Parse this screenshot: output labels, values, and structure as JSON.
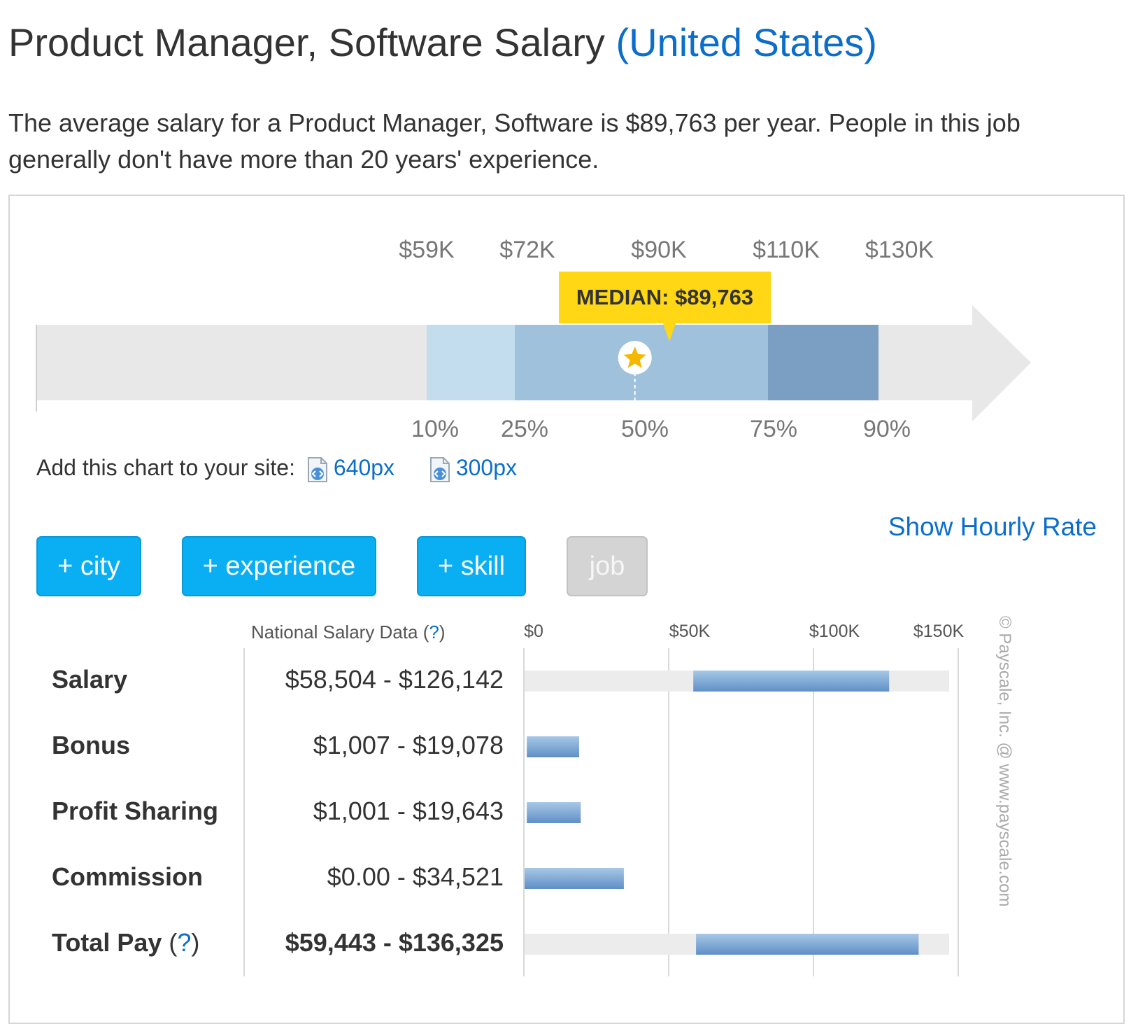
{
  "header": {
    "title": "Product Manager, Software Salary",
    "region": "(United States)",
    "summary": "The average salary for a Product Manager, Software is $89,763 per year. People in this job generally don't have more than 20 years' experience."
  },
  "chart_data": [
    {
      "type": "bar",
      "title": "",
      "percentiles": [
        "10%",
        "25%",
        "50%",
        "75%",
        "90%"
      ],
      "values_label": [
        "$59K",
        "$72K",
        "$90K",
        "$110K",
        "$130K"
      ],
      "values": [
        59000,
        72000,
        90000,
        110000,
        130000
      ],
      "median_label": "MEDIAN: $89,763",
      "median": 89763,
      "colors": {
        "track": "#e8e8e8",
        "p10_p25": "#c3ddee",
        "p25_p75": "#9fc1dc",
        "p75_p90": "#7a9fc3",
        "median_badge": "#ffd714"
      }
    },
    {
      "type": "bar",
      "title": "",
      "header": "National Salary Data",
      "help": "?",
      "axis_ticks": [
        "$0",
        "$50K",
        "$100K",
        "$150K"
      ],
      "xlim": [
        0,
        150000
      ],
      "rows": [
        {
          "label": "Salary",
          "range": "$58,504 - $126,142",
          "low": 58504,
          "high": 126142,
          "track": true,
          "bold": false
        },
        {
          "label": "Bonus",
          "range": "$1,007 - $19,078",
          "low": 1007,
          "high": 19078,
          "track": false,
          "bold": false
        },
        {
          "label": "Profit Sharing",
          "range": "$1,001 - $19,643",
          "low": 1001,
          "high": 19643,
          "track": false,
          "bold": false
        },
        {
          "label": "Commission",
          "range": "$0.00 - $34,521",
          "low": 0,
          "high": 34521,
          "track": false,
          "bold": false
        },
        {
          "label": "Total Pay",
          "range": "$59,443 - $136,325",
          "low": 59443,
          "high": 136325,
          "track": true,
          "bold": true,
          "help": "?"
        }
      ]
    }
  ],
  "embed": {
    "label": "Add this chart to your site:",
    "icon": "code-embed-icon",
    "links": [
      "640px",
      "300px"
    ]
  },
  "filters": {
    "city": "+ city",
    "experience": "+ experience",
    "skill": "+ skill",
    "job": "job"
  },
  "hourly_link": "Show Hourly Rate",
  "copyright": "© Payscale, Inc. @ www.payscale.com",
  "colors": {
    "link": "#0b6ecb",
    "button": "#0aaef2",
    "button_disabled": "#d4d4d4"
  }
}
